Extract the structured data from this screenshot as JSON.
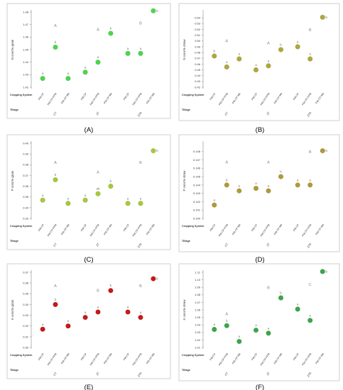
{
  "figure": {
    "row_labels": {
      "cropping": "Cropping System",
      "tillage": "Tillage"
    }
  },
  "chart_data": [
    {
      "panel": "(A)",
      "type": "scatter",
      "ylabel": "N conc% grain",
      "ylim": [
        1.42,
        1.48
      ],
      "yticks": [
        "1.42",
        "1.43",
        "1.44",
        "1.45",
        "1.46",
        "1.47",
        "1.48"
      ],
      "categories": [
        "PM-CP",
        "PM-CP-FPM",
        "PM-CP-Mb",
        "PM-CP",
        "PM-CP-FPM",
        "PM-CP-Mb",
        "PM-CP",
        "PM-CP-FPM",
        "PM-CP-Mb"
      ],
      "tillage": [
        "CT",
        "ZT",
        "ZTR"
      ],
      "values": [
        1.427,
        1.452,
        1.427,
        1.432,
        1.44,
        1.463,
        1.447,
        1.447,
        1.481
      ],
      "letters": [
        "a",
        "b",
        "a",
        "a",
        "a",
        "b",
        "a",
        "a",
        "b"
      ],
      "group_letters": [
        "A",
        "A",
        "B"
      ],
      "group_y": [
        1.468,
        1.465,
        1.47
      ],
      "color": "#4cd64c"
    },
    {
      "panel": "(B)",
      "type": "scatter",
      "ylabel": "N conc% straw",
      "ylim": [
        0.42,
        0.55
      ],
      "yticks": [
        "0.42",
        "0.43",
        "0.44",
        "0.45",
        "0.46",
        "0.47",
        "0.48",
        "0.49",
        "0.50",
        "0.51",
        "0.52",
        "0.53",
        "0.54"
      ],
      "categories": [
        "PM-CP",
        "PM-CP-FPM",
        "PM-CP-Mb",
        "PM-CP",
        "PM-CP-FPM",
        "PM-CP-Mb",
        "PM-CP",
        "PM-CP-FPM",
        "PM-CP-Mb"
      ],
      "tillage": [
        "CT",
        "ZT",
        "ZTR"
      ],
      "values": [
        0.474,
        0.455,
        0.469,
        0.45,
        0.457,
        0.485,
        0.49,
        0.469,
        0.541
      ],
      "letters": [
        "b",
        "a",
        "a",
        "a",
        "a",
        "b",
        "a",
        "a",
        "b"
      ],
      "group_letters": [
        "A",
        "A",
        "B"
      ],
      "group_y": [
        0.498,
        0.494,
        0.517
      ],
      "color": "#b0a73a"
    },
    {
      "panel": "(C)",
      "type": "scatter",
      "ylabel": "P conc% grain",
      "ylim": [
        0.33,
        0.4
      ],
      "yticks": [
        "0.33",
        "0.34",
        "0.35",
        "0.36",
        "0.37",
        "0.38",
        "0.39",
        "0.40"
      ],
      "categories": [
        "PM-CP",
        "PM-CP-FPM",
        "PM-CP-Mb",
        "PM-CP",
        "PM-CP-FPM",
        "PM-CP-Mb",
        "PM-CP",
        "PM-CP-FPM",
        "PM-CP-Mb"
      ],
      "tillage": [
        "CT",
        "ZT",
        "ZTR"
      ],
      "values": [
        0.347,
        0.366,
        0.344,
        0.347,
        0.353,
        0.36,
        0.344,
        0.344,
        0.393
      ],
      "letters": [
        "a",
        "b",
        "a",
        "a",
        "ab",
        "b",
        "a",
        "a",
        "b"
      ],
      "group_letters": [
        "A",
        "A",
        "B"
      ],
      "group_y": [
        0.381,
        0.372,
        0.381
      ],
      "color": "#a6c93a"
    },
    {
      "panel": "(D)",
      "type": "scatter",
      "ylabel": "P conc% straw",
      "ylim": [
        0.14,
        0.149
      ],
      "yticks": [
        "0.140",
        "0.141",
        "0.142",
        "0.143",
        "0.144",
        "0.145",
        "0.146",
        "0.147",
        "0.148"
      ],
      "categories": [
        "PM-CP",
        "PM-CP-FPM",
        "PM-CP-Mb",
        "PM-CP",
        "PM-CP-FPM",
        "PM-CP-Mb",
        "PM-CP",
        "PM-CP-FPM",
        "PM-CP-Mb"
      ],
      "tillage": [
        "CT",
        "ZT",
        "ZTR"
      ],
      "values": [
        0.1416,
        0.144,
        0.1433,
        0.1436,
        0.1433,
        0.145,
        0.144,
        0.144,
        0.1481
      ],
      "letters": [
        "a",
        "b",
        "a",
        "a",
        "a",
        "b",
        "a",
        "a",
        "b"
      ],
      "group_letters": [
        "A",
        "A",
        "B"
      ],
      "group_y": [
        0.1466,
        0.1466,
        0.1478
      ],
      "color": "#b09a38"
    },
    {
      "panel": "(E)",
      "type": "scatter",
      "ylabel": "K conc% grain",
      "ylim": [
        0.3,
        0.37
      ],
      "yticks": [
        "0.30",
        "0.31",
        "0.32",
        "0.33",
        "0.34",
        "0.35",
        "0.36",
        "0.37"
      ],
      "categories": [
        "PM-CP",
        "PM-CP-FPM",
        "PM-CP-Mb",
        "PM-CP",
        "PM-CP-FPM",
        "PM-CP-Mb",
        "PM-CP",
        "PM-CP-FPM",
        "PM-CP-Mb"
      ],
      "tillage": [
        "CT",
        "ZT",
        "ZTR"
      ],
      "values": [
        0.317,
        0.34,
        0.32,
        0.328,
        0.333,
        0.353,
        0.333,
        0.328,
        0.364
      ],
      "letters": [
        "a",
        "b",
        "a",
        "a",
        "a",
        "b",
        "a",
        "a",
        "b"
      ],
      "group_letters": [
        "A",
        "B",
        "B"
      ],
      "group_y": [
        0.356,
        0.352,
        0.356
      ],
      "color": "#c81818"
    },
    {
      "panel": "(F)",
      "type": "scatter",
      "ylabel": "K conc% straw",
      "ylim": [
        1.01,
        1.11
      ],
      "yticks": [
        "1.01",
        "1.02",
        "1.03",
        "1.04",
        "1.05",
        "1.06",
        "1.07",
        "1.08",
        "1.09",
        "1.10",
        "1.11"
      ],
      "categories": [
        "PM-CP",
        "PM-CP-FPM",
        "PM-CP-Mb",
        "PM-CP",
        "PM-CP-FPM",
        "PM-CP-Mb",
        "PM-CP",
        "PM-CP-FPM",
        "PM-CP-Mb"
      ],
      "tillage": [
        "CT",
        "ZT",
        "ZTR"
      ],
      "values": [
        1.034,
        1.039,
        1.018,
        1.033,
        1.029,
        1.076,
        1.061,
        1.046,
        1.111
      ],
      "letters": [
        "a",
        "b",
        "a",
        "a",
        "a",
        "b",
        "a",
        "a",
        "b"
      ],
      "group_letters": [
        "A",
        "B",
        "C"
      ],
      "group_y": [
        1.053,
        1.088,
        1.092
      ],
      "color": "#3aa64a"
    }
  ]
}
